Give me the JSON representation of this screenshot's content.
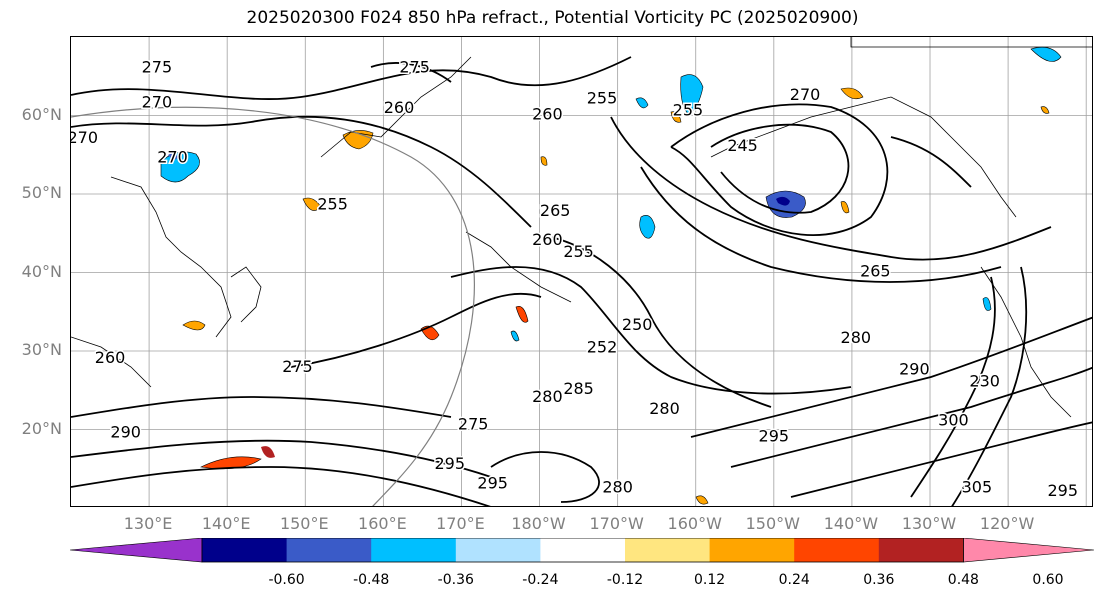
{
  "title": "2025020300 F024 850 hPa refract., Potential Vorticity PC (2025020900)",
  "lat_labels": [
    {
      "text": "60°N",
      "lat": 60
    },
    {
      "text": "50°N",
      "lat": 50
    },
    {
      "text": "40°N",
      "lat": 40
    },
    {
      "text": "30°N",
      "lat": 30
    },
    {
      "text": "20°N",
      "lat": 20
    }
  ],
  "lon_labels": [
    {
      "text": "130°E",
      "lon": 130
    },
    {
      "text": "140°E",
      "lon": 140
    },
    {
      "text": "150°E",
      "lon": 150
    },
    {
      "text": "160°E",
      "lon": 160
    },
    {
      "text": "170°E",
      "lon": 170
    },
    {
      "text": "180°W",
      "lon": 180
    },
    {
      "text": "170°W",
      "lon": 190
    },
    {
      "text": "160°W",
      "lon": 200
    },
    {
      "text": "150°W",
      "lon": 210
    },
    {
      "text": "140°W",
      "lon": 220
    },
    {
      "text": "130°W",
      "lon": 230
    },
    {
      "text": "120°W",
      "lon": 240
    }
  ],
  "extent": {
    "lon_min": 120,
    "lon_max": 251,
    "lat_min": 10,
    "lat_max": 70
  },
  "contour_labels": [
    {
      "text": "275",
      "lon": 131,
      "lat": 65.5
    },
    {
      "text": "275",
      "lon": 164,
      "lat": 65.5
    },
    {
      "text": "270",
      "lon": 131,
      "lat": 61
    },
    {
      "text": "270",
      "lon": 121.5,
      "lat": 56.5
    },
    {
      "text": "270",
      "lon": 133,
      "lat": 54
    },
    {
      "text": "260",
      "lon": 162,
      "lat": 60.3
    },
    {
      "text": "260",
      "lon": 181,
      "lat": 59.5
    },
    {
      "text": "255",
      "lon": 188,
      "lat": 61.5
    },
    {
      "text": "255",
      "lon": 153.5,
      "lat": 48
    },
    {
      "text": "255",
      "lon": 199,
      "lat": 60
    },
    {
      "text": "245",
      "lon": 206,
      "lat": 55.5
    },
    {
      "text": "270",
      "lon": 214,
      "lat": 62
    },
    {
      "text": "265",
      "lon": 182,
      "lat": 47.2
    },
    {
      "text": "260",
      "lon": 181,
      "lat": 43.5
    },
    {
      "text": "255",
      "lon": 185,
      "lat": 42
    },
    {
      "text": "265",
      "lon": 223,
      "lat": 39.5
    },
    {
      "text": "250",
      "lon": 192.5,
      "lat": 32.7
    },
    {
      "text": "252",
      "lon": 188,
      "lat": 29.8
    },
    {
      "text": "280",
      "lon": 220.5,
      "lat": 31
    },
    {
      "text": "260",
      "lon": 125,
      "lat": 28.5
    },
    {
      "text": "275",
      "lon": 149,
      "lat": 27.3
    },
    {
      "text": "280",
      "lon": 181,
      "lat": 23.5
    },
    {
      "text": "285",
      "lon": 185,
      "lat": 24.5
    },
    {
      "text": "280",
      "lon": 196,
      "lat": 22
    },
    {
      "text": "290",
      "lon": 228,
      "lat": 27
    },
    {
      "text": "290",
      "lon": 127,
      "lat": 19
    },
    {
      "text": "275",
      "lon": 171.5,
      "lat": 20
    },
    {
      "text": "295",
      "lon": 168.5,
      "lat": 15
    },
    {
      "text": "295",
      "lon": 174,
      "lat": 12.5
    },
    {
      "text": "295",
      "lon": 247,
      "lat": 11.5
    },
    {
      "text": "305",
      "lon": 236,
      "lat": 12
    },
    {
      "text": "300",
      "lon": 233,
      "lat": 20.5
    },
    {
      "text": "295",
      "lon": 210,
      "lat": 18.5
    },
    {
      "text": "230",
      "lon": 237,
      "lat": 25.5
    },
    {
      "text": "280",
      "lon": 190,
      "lat": 12
    }
  ],
  "colorbar": {
    "ticks": [
      "-0.60",
      "-0.48",
      "-0.36",
      "-0.24",
      "-0.12",
      "0.12",
      "0.24",
      "0.36",
      "0.48",
      "0.60"
    ],
    "colors": [
      "#9932cc",
      "#00008b",
      "#3a5bc8",
      "#00bfff",
      "#b0e2ff",
      "#ffffff",
      "#ffe680",
      "#ffa500",
      "#ff4500",
      "#b22222",
      "#ff88aa"
    ]
  }
}
